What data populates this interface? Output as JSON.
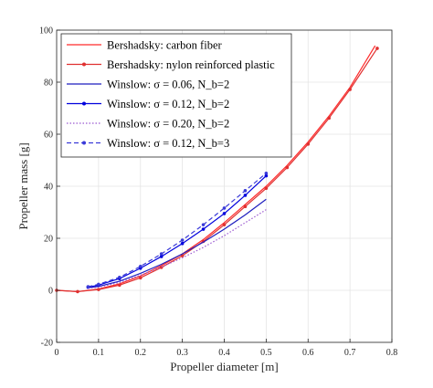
{
  "chart_data": {
    "type": "line",
    "xlabel": "Propeller diameter [m]",
    "ylabel": "Propeller mass [g]",
    "xlim": [
      0,
      0.8
    ],
    "ylim": [
      -20,
      100
    ],
    "xticks": [
      "0",
      "0.1",
      "0.2",
      "0.3",
      "0.4",
      "0.5",
      "0.6",
      "0.7",
      "0.8"
    ],
    "yticks": [
      "-20",
      "0",
      "20",
      "40",
      "60",
      "80",
      "100"
    ],
    "grid": true,
    "legend_position": "top-left",
    "series": [
      {
        "name": "Bershadsky: carbon fiber",
        "color": "#ff2a2a",
        "style": "solid",
        "marker": "none",
        "x": [
          0,
          0.05,
          0.1,
          0.15,
          0.2,
          0.25,
          0.3,
          0.35,
          0.4,
          0.45,
          0.5,
          0.55,
          0.6,
          0.65,
          0.7,
          0.76
        ],
        "y": [
          0,
          -0.5,
          0.5,
          2.5,
          5.5,
          9.5,
          14.0,
          19.5,
          26.0,
          33.0,
          40.0,
          48.0,
          57.0,
          67.0,
          78.0,
          94.0
        ]
      },
      {
        "name": "Bershadsky: nylon reinforced plastic",
        "color": "#e03030",
        "style": "solid",
        "marker": "dot",
        "x": [
          0,
          0.05,
          0.1,
          0.15,
          0.2,
          0.25,
          0.3,
          0.35,
          0.4,
          0.45,
          0.5,
          0.55,
          0.6,
          0.65,
          0.7,
          0.765
        ],
        "y": [
          0,
          -0.5,
          0.3,
          2.0,
          4.8,
          8.8,
          13.3,
          18.8,
          25.2,
          32.2,
          39.2,
          47.2,
          56.2,
          66.2,
          77.2,
          93.0
        ]
      },
      {
        "name": "Winslow: σ = 0.06, N_b=2",
        "color": "#1f1fbf",
        "style": "solid",
        "marker": "none",
        "x": [
          0.075,
          0.1,
          0.15,
          0.2,
          0.25,
          0.3,
          0.35,
          0.4,
          0.45,
          0.5
        ],
        "y": [
          1.0,
          1.5,
          3.5,
          6.5,
          10.0,
          14.0,
          18.5,
          23.5,
          29.0,
          35.0
        ]
      },
      {
        "name": "Winslow: σ = 0.12, N_b=2",
        "color": "#0000dd",
        "style": "solid",
        "marker": "dot",
        "x": [
          0.075,
          0.1,
          0.15,
          0.2,
          0.25,
          0.3,
          0.35,
          0.4,
          0.45,
          0.5
        ],
        "y": [
          1.2,
          2.0,
          4.5,
          8.5,
          13.0,
          18.0,
          23.5,
          29.5,
          36.5,
          44.0
        ]
      },
      {
        "name": "Winslow: σ = 0.20, N_b=2",
        "color": "#9b59d0",
        "style": "dotted",
        "marker": "none",
        "x": [
          0.075,
          0.1,
          0.15,
          0.2,
          0.25,
          0.3,
          0.35,
          0.4,
          0.45,
          0.5
        ],
        "y": [
          0.8,
          1.2,
          3.0,
          5.8,
          9.0,
          12.5,
          16.5,
          21.0,
          26.0,
          31.0
        ]
      },
      {
        "name": "Winslow: σ = 0.12, N_b=3",
        "color": "#3a3ad8",
        "style": "dashed",
        "marker": "dot",
        "x": [
          0.075,
          0.1,
          0.15,
          0.2,
          0.25,
          0.3,
          0.35,
          0.4,
          0.45,
          0.5
        ],
        "y": [
          1.4,
          2.3,
          5.0,
          9.2,
          14.0,
          19.3,
          25.2,
          31.6,
          38.3,
          45.0
        ]
      }
    ]
  }
}
